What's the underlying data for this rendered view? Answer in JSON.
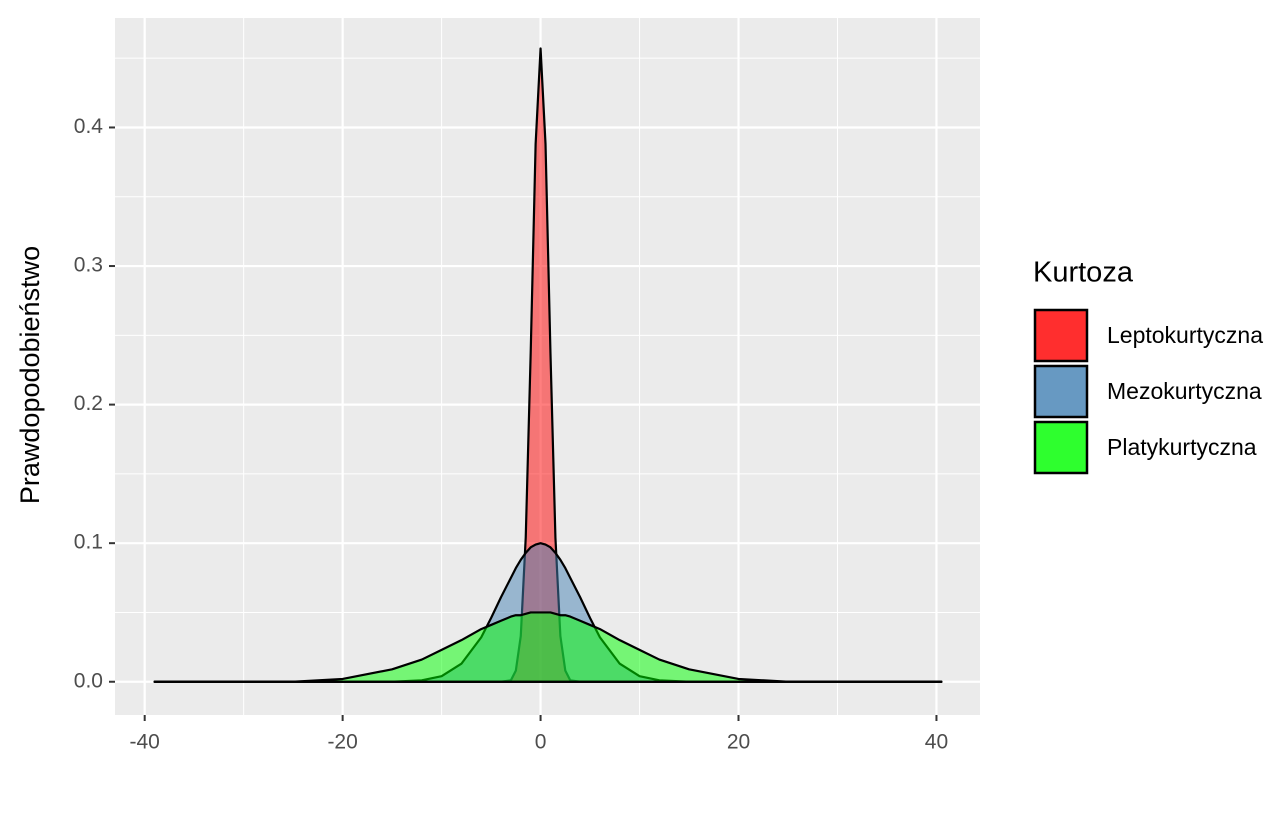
{
  "chart_data": {
    "type": "area",
    "ylabel": "Prawdopodobieństwo",
    "legend_title": "Kurtoza",
    "legend_position": "right",
    "grid": true,
    "x": [
      -39,
      -35,
      -30,
      -25,
      -20,
      -15,
      -12,
      -10,
      -8,
      -6,
      -5,
      -4,
      -3,
      -2.5,
      -2,
      -1.5,
      -1,
      -0.5,
      0,
      0.5,
      1,
      1.5,
      2,
      2.5,
      3,
      4,
      5,
      6,
      8,
      10,
      12,
      15,
      20,
      25,
      30,
      35,
      40.5
    ],
    "series": [
      {
        "name": "Leptokurtyczna",
        "color": "#ff0000",
        "values": [
          0,
          0,
          0,
          0,
          0,
          0,
          0,
          0,
          0,
          0,
          0,
          0,
          0.001,
          0.008,
          0.033,
          0.104,
          0.237,
          0.388,
          0.457,
          0.388,
          0.237,
          0.104,
          0.033,
          0.008,
          0.001,
          0,
          0,
          0,
          0,
          0,
          0,
          0,
          0,
          0,
          0,
          0,
          0
        ]
      },
      {
        "name": "Mezokurtyczna",
        "color": "#4682b4",
        "values": [
          0,
          0,
          0,
          0,
          0,
          0,
          0.001,
          0.004,
          0.013,
          0.032,
          0.046,
          0.061,
          0.075,
          0.082,
          0.088,
          0.093,
          0.097,
          0.099,
          0.1,
          0.099,
          0.097,
          0.093,
          0.088,
          0.082,
          0.075,
          0.061,
          0.046,
          0.032,
          0.013,
          0.004,
          0.001,
          0,
          0,
          0,
          0,
          0,
          0
        ]
      },
      {
        "name": "Platykurtyczna",
        "color": "#00ff00",
        "values": [
          0,
          0,
          0,
          0,
          0.002,
          0.009,
          0.016,
          0.023,
          0.03,
          0.038,
          0.041,
          0.044,
          0.047,
          0.048,
          0.048,
          0.049,
          0.05,
          0.05,
          0.05,
          0.05,
          0.05,
          0.049,
          0.048,
          0.048,
          0.047,
          0.044,
          0.041,
          0.038,
          0.03,
          0.023,
          0.016,
          0.009,
          0.002,
          0,
          0,
          0,
          0
        ]
      }
    ],
    "xlim": [
      -43,
      44.4
    ],
    "xticks": [
      -40,
      -20,
      0,
      20,
      40
    ],
    "ylim": [
      -0.024,
      0.479
    ],
    "yticks": [
      {
        "value": 0,
        "label": "0.0"
      },
      0.1,
      0.2,
      0.3,
      0.4
    ]
  }
}
